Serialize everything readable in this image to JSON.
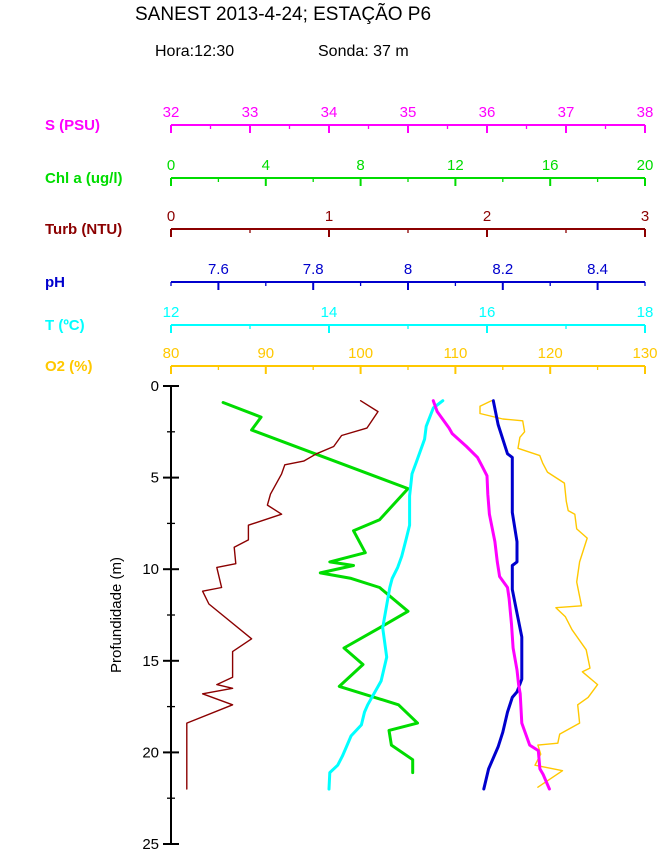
{
  "header": {
    "title": "SANEST 2013-4-24; ESTAÇÃO P6",
    "hora_label": "Hora:12:30",
    "sonda_label": "Sonda: 37 m"
  },
  "chart_data": {
    "type": "line",
    "description": "Vertical CTD profile: six parameters vs depth, each with its own top axis",
    "grid": false,
    "legend_position": "none",
    "depth_axis": {
      "label": "Profundidade (m)",
      "min": 0,
      "max": 25,
      "tick_values": [
        0,
        5,
        10,
        15,
        20,
        25
      ],
      "tick_labels": [
        "0",
        "5",
        "10",
        "15",
        "20",
        "25"
      ],
      "minor_step": 2.5,
      "color": "#000000"
    },
    "axes": [
      {
        "id": "s",
        "label": "S (PSU)",
        "min": 32,
        "max": 38,
        "tick_values": [
          32,
          33,
          34,
          35,
          36,
          37,
          38
        ],
        "tick_labels": [
          "32",
          "33",
          "34",
          "35",
          "36",
          "37",
          "38"
        ],
        "minor_step": 0.5,
        "color": "#FF00FF"
      },
      {
        "id": "chl",
        "label": "Chl a (ug/l)",
        "min": 0,
        "max": 20,
        "tick_values": [
          0,
          4,
          8,
          12,
          16,
          20
        ],
        "tick_labels": [
          "0",
          "4",
          "8",
          "12",
          "16",
          "20"
        ],
        "minor_step": 2,
        "color": "#00DC00"
      },
      {
        "id": "turb",
        "label": "Turb (NTU)",
        "min": 0,
        "max": 3,
        "tick_values": [
          0,
          1,
          2,
          3
        ],
        "tick_labels": [
          "0",
          "1",
          "2",
          "3"
        ],
        "minor_step": 0.5,
        "color": "#8B0000"
      },
      {
        "id": "ph",
        "label": "pH",
        "min": 7.5,
        "max": 8.5,
        "tick_values": [
          7.6,
          7.8,
          8.0,
          8.2,
          8.4
        ],
        "tick_labels": [
          "7.6",
          "7.8",
          "8",
          "8.2",
          "8.4"
        ],
        "minor_step": 0.1,
        "color": "#0000CD"
      },
      {
        "id": "t",
        "label": "T (ºC)",
        "min": 12,
        "max": 18,
        "tick_values": [
          12,
          14,
          16,
          18
        ],
        "tick_labels": [
          "12",
          "14",
          "16",
          "18"
        ],
        "minor_step": 1,
        "color": "#00FFFF"
      },
      {
        "id": "o2",
        "label": "O2 (%)",
        "min": 80,
        "max": 130,
        "tick_values": [
          80,
          90,
          100,
          110,
          120,
          130
        ],
        "tick_labels": [
          "80",
          "90",
          "100",
          "110",
          "120",
          "130"
        ],
        "minor_step": 5,
        "color": "#FFC800"
      }
    ],
    "series": [
      {
        "id": "chlorophyll",
        "axis": "chl",
        "color": "#00DC00",
        "width": 3,
        "points": [
          [
            0.9,
            2.2
          ],
          [
            1.7,
            3.8
          ],
          [
            2.4,
            3.4
          ],
          [
            5.6,
            10.0
          ],
          [
            7.3,
            8.8
          ],
          [
            7.9,
            7.7
          ],
          [
            9.1,
            8.2
          ],
          [
            9.6,
            6.7
          ],
          [
            9.8,
            7.7
          ],
          [
            10.2,
            6.3
          ],
          [
            10.5,
            7.6
          ],
          [
            11.0,
            8.8
          ],
          [
            12.3,
            10.0
          ],
          [
            13.2,
            8.8
          ],
          [
            14.3,
            7.3
          ],
          [
            15.2,
            8.1
          ],
          [
            16.4,
            7.1
          ],
          [
            17.4,
            9.6
          ],
          [
            18.4,
            10.4
          ],
          [
            18.8,
            9.2
          ],
          [
            19.6,
            9.3
          ],
          [
            20.4,
            10.2
          ],
          [
            21.1,
            10.2
          ]
        ]
      },
      {
        "id": "turbidity",
        "axis": "turb",
        "color": "#8B0000",
        "width": 1.4,
        "points": [
          [
            0.8,
            1.2
          ],
          [
            1.4,
            1.31
          ],
          [
            2.3,
            1.24
          ],
          [
            2.7,
            1.08
          ],
          [
            3.3,
            1.03
          ],
          [
            3.7,
            0.92
          ],
          [
            4.1,
            0.84
          ],
          [
            4.3,
            0.72
          ],
          [
            4.8,
            0.7
          ],
          [
            5.9,
            0.63
          ],
          [
            6.5,
            0.61
          ],
          [
            7.0,
            0.7
          ],
          [
            7.6,
            0.49
          ],
          [
            8.4,
            0.49
          ],
          [
            8.8,
            0.4
          ],
          [
            9.7,
            0.41
          ],
          [
            9.9,
            0.29
          ],
          [
            11.0,
            0.32
          ],
          [
            11.2,
            0.2
          ],
          [
            11.9,
            0.24
          ],
          [
            13.8,
            0.51
          ],
          [
            14.5,
            0.39
          ],
          [
            15.9,
            0.39
          ],
          [
            16.3,
            0.29
          ],
          [
            16.5,
            0.39
          ],
          [
            16.8,
            0.2
          ],
          [
            17.4,
            0.39
          ],
          [
            18.4,
            0.1
          ],
          [
            22.0,
            0.1
          ]
        ]
      },
      {
        "id": "oxygen",
        "axis": "o2",
        "color": "#FFC800",
        "width": 1.4,
        "points": [
          [
            0.8,
            113.8
          ],
          [
            1.1,
            112.6
          ],
          [
            1.5,
            112.6
          ],
          [
            1.8,
            115.0
          ],
          [
            1.9,
            117.1
          ],
          [
            2.5,
            117.3
          ],
          [
            2.8,
            116.8
          ],
          [
            3.4,
            116.6
          ],
          [
            3.8,
            118.9
          ],
          [
            4.2,
            119.2
          ],
          [
            4.7,
            119.7
          ],
          [
            5.3,
            121.5
          ],
          [
            6.3,
            121.7
          ],
          [
            6.8,
            121.9
          ],
          [
            7.0,
            122.6
          ],
          [
            7.8,
            122.8
          ],
          [
            8.3,
            123.9
          ],
          [
            9.6,
            123.1
          ],
          [
            10.7,
            122.8
          ],
          [
            12.0,
            123.3
          ],
          [
            12.1,
            120.6
          ],
          [
            12.6,
            121.6
          ],
          [
            13.3,
            122.3
          ],
          [
            14.4,
            123.8
          ],
          [
            15.4,
            124.2
          ],
          [
            15.6,
            123.4
          ],
          [
            16.3,
            125.0
          ],
          [
            17.0,
            124.0
          ],
          [
            17.4,
            122.9
          ],
          [
            18.4,
            123.1
          ],
          [
            19.0,
            121.0
          ],
          [
            19.5,
            120.8
          ],
          [
            19.6,
            118.7
          ],
          [
            20.1,
            119.0
          ],
          [
            20.7,
            118.4
          ],
          [
            21.0,
            121.3
          ],
          [
            21.9,
            118.7
          ]
        ]
      },
      {
        "id": "temperature",
        "axis": "t",
        "color": "#00FFFF",
        "width": 3,
        "points": [
          [
            0.8,
            15.44
          ],
          [
            1.2,
            15.32
          ],
          [
            2.2,
            15.23
          ],
          [
            2.9,
            15.21
          ],
          [
            4.1,
            15.11
          ],
          [
            4.8,
            15.05
          ],
          [
            6.0,
            15.02
          ],
          [
            7.6,
            15.02
          ],
          [
            8.3,
            14.98
          ],
          [
            9.3,
            14.92
          ],
          [
            9.9,
            14.87
          ],
          [
            10.5,
            14.8
          ],
          [
            11.0,
            14.77
          ],
          [
            13.2,
            14.68
          ],
          [
            14.8,
            14.73
          ],
          [
            16.1,
            14.66
          ],
          [
            17.4,
            14.49
          ],
          [
            17.8,
            14.45
          ],
          [
            18.5,
            14.41
          ],
          [
            19.1,
            14.28
          ],
          [
            19.7,
            14.22
          ],
          [
            20.2,
            14.17
          ],
          [
            20.7,
            14.11
          ],
          [
            21.1,
            14.01
          ],
          [
            22.0,
            14.0
          ]
        ]
      },
      {
        "id": "ph",
        "axis": "ph",
        "color": "#0000CD",
        "width": 3,
        "points": [
          [
            0.8,
            8.18
          ],
          [
            2.1,
            8.19
          ],
          [
            3.7,
            8.21
          ],
          [
            3.9,
            8.22
          ],
          [
            6.9,
            8.22
          ],
          [
            8.5,
            8.23
          ],
          [
            9.6,
            8.23
          ],
          [
            9.8,
            8.22
          ],
          [
            11.1,
            8.22
          ],
          [
            12.4,
            8.23
          ],
          [
            13.7,
            8.24
          ],
          [
            16.0,
            8.24
          ],
          [
            16.7,
            8.23
          ],
          [
            17.0,
            8.22
          ],
          [
            17.8,
            8.21
          ],
          [
            18.9,
            8.2
          ],
          [
            19.7,
            8.19
          ],
          [
            20.9,
            8.17
          ],
          [
            22.0,
            8.16
          ]
        ]
      },
      {
        "id": "salinity",
        "axis": "s",
        "color": "#FF00FF",
        "width": 3,
        "points": [
          [
            0.8,
            35.32
          ],
          [
            1.4,
            35.37
          ],
          [
            2.3,
            35.52
          ],
          [
            2.6,
            35.56
          ],
          [
            3.3,
            35.74
          ],
          [
            3.9,
            35.88
          ],
          [
            4.4,
            35.94
          ],
          [
            4.9,
            36.0
          ],
          [
            5.9,
            36.01
          ],
          [
            7.0,
            36.03
          ],
          [
            8.5,
            36.1
          ],
          [
            9.6,
            36.13
          ],
          [
            10.4,
            36.16
          ],
          [
            11.0,
            36.26
          ],
          [
            11.6,
            36.28
          ],
          [
            13.0,
            36.31
          ],
          [
            14.3,
            36.33
          ],
          [
            15.5,
            36.38
          ],
          [
            16.3,
            36.4
          ],
          [
            16.8,
            36.42
          ],
          [
            18.4,
            36.44
          ],
          [
            19.6,
            36.54
          ],
          [
            19.9,
            36.65
          ],
          [
            20.9,
            36.67
          ],
          [
            21.2,
            36.71
          ],
          [
            22.0,
            36.79
          ]
        ]
      }
    ]
  }
}
